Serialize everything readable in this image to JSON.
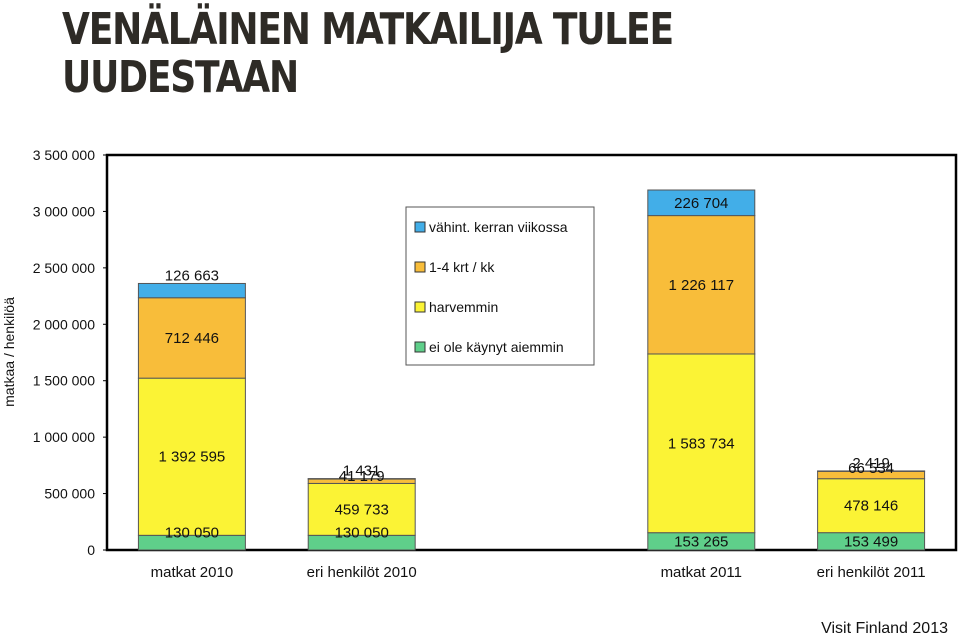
{
  "title_line1": "VENÄLÄINEN MATKAILIJA TULEE",
  "title_line2": "UUDESTAAN",
  "credit": "Visit Finland 2013",
  "chart_data": {
    "type": "bar",
    "stacked": true,
    "categories": [
      "matkat 2010",
      "eri henkilöt 2010",
      "",
      "matkat 2011",
      "eri henkilöt 2011"
    ],
    "ylabel": "matkaa / henkilöä",
    "ylim": [
      0,
      3500000
    ],
    "yticks": [
      0,
      500000,
      1000000,
      1500000,
      2000000,
      2500000,
      3000000,
      3500000
    ],
    "ytick_labels": [
      "0",
      "500 000",
      "1 000 000",
      "1 500 000",
      "2 000 000",
      "2 500 000",
      "3 000 000",
      "3 500 000"
    ],
    "grid": false,
    "legend_position": "top-center",
    "series": [
      {
        "name": "ei ole käynyt aiemmin",
        "color": "#5fcf8a",
        "values": [
          130050,
          130050,
          null,
          153265,
          153499
        ],
        "labels": [
          "130 050",
          "130 050",
          "",
          "153 265",
          "153 499"
        ]
      },
      {
        "name": "harvemmin",
        "color": "#fbf335",
        "values": [
          1392595,
          459733,
          null,
          1583734,
          478146
        ],
        "labels": [
          "1 392 595",
          "459 733",
          "",
          "1 583 734",
          "478 146"
        ]
      },
      {
        "name": "1-4 krt / kk",
        "color": "#f8bd3a",
        "values": [
          712446,
          41179,
          null,
          1226117,
          66534
        ],
        "labels": [
          "712 446",
          "41 179",
          "",
          "1 226 117",
          "66 534"
        ]
      },
      {
        "name": "vähint. kerran viikossa",
        "color": "#42aee8",
        "values": [
          126663,
          1431,
          null,
          226704,
          2419
        ],
        "labels": [
          "126 663",
          "1 431",
          "",
          "226 704",
          "2 419"
        ]
      }
    ]
  }
}
